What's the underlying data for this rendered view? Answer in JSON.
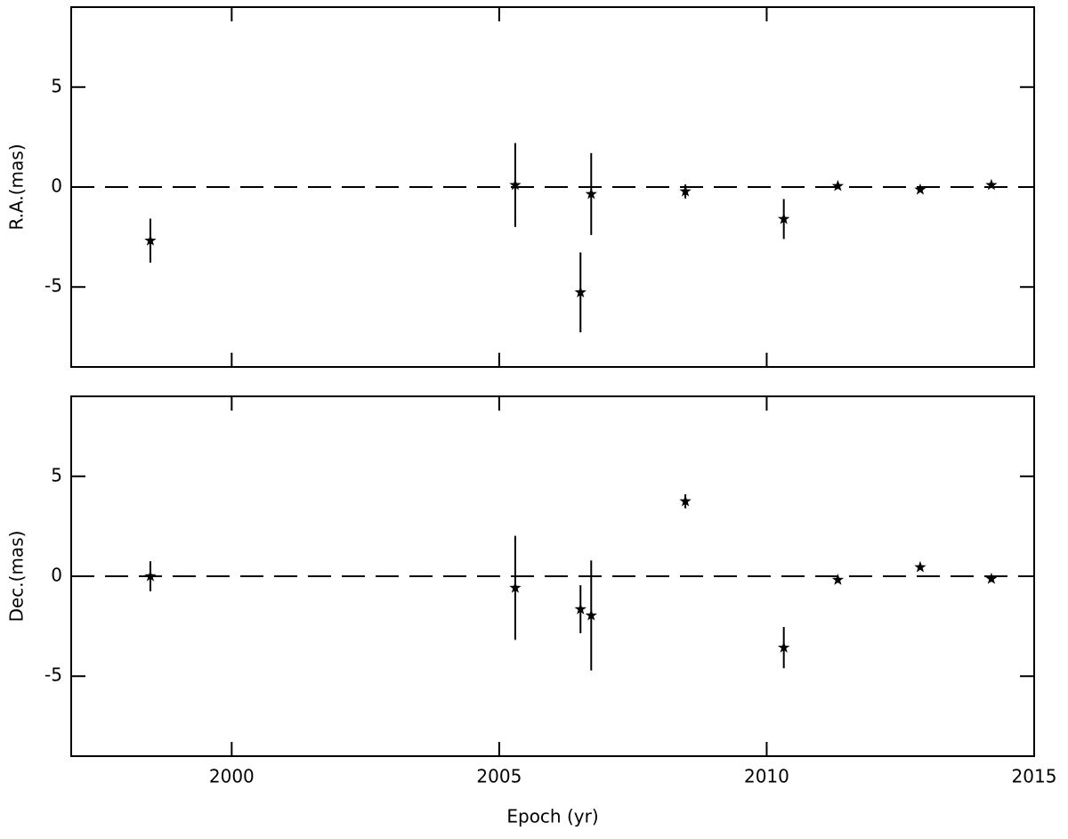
{
  "chart_data": [
    {
      "type": "scatter",
      "ylabel": "R.A.(mas)",
      "x": [
        1998.48,
        2005.3,
        2006.52,
        2006.72,
        2008.48,
        2010.32,
        2011.33,
        2012.87,
        2014.2
      ],
      "series": [
        {
          "color": "#000000",
          "values": [
            -2.68,
            0.1,
            -5.27,
            -0.35,
            -0.22,
            -1.6,
            0.05,
            -0.13,
            0.1
          ],
          "errors": [
            1.1,
            2.1,
            2.0,
            2.05,
            0.35,
            1.0,
            0.15,
            0.1,
            0.15
          ]
        }
      ],
      "xlim": [
        1997,
        2015
      ],
      "xticks": [
        2000,
        2005,
        2010,
        2015
      ],
      "ylim": [
        -9,
        9
      ],
      "yticks": [
        -5,
        0,
        5
      ],
      "reference_line": 0
    },
    {
      "type": "scatter",
      "ylabel": "Dec.(mas)",
      "xlabel": "Epoch (yr)",
      "x": [
        1998.48,
        2005.3,
        2006.52,
        2006.72,
        2008.48,
        2010.32,
        2011.33,
        2012.87,
        2014.2
      ],
      "series": [
        {
          "color": "#000000",
          "values": [
            0,
            -0.58,
            -1.65,
            -1.96,
            3.75,
            -3.57,
            -0.18,
            0.45,
            -0.13
          ],
          "errors": [
            0.75,
            2.6,
            1.2,
            2.75,
            0.35,
            1.03,
            0.15,
            0.1,
            0.15
          ]
        }
      ],
      "xlim": [
        1997,
        2015
      ],
      "xticks": [
        2000,
        2005,
        2010,
        2015
      ],
      "ylim": [
        -9,
        9
      ],
      "yticks": [
        -5,
        0,
        5
      ],
      "reference_line": 0
    }
  ]
}
